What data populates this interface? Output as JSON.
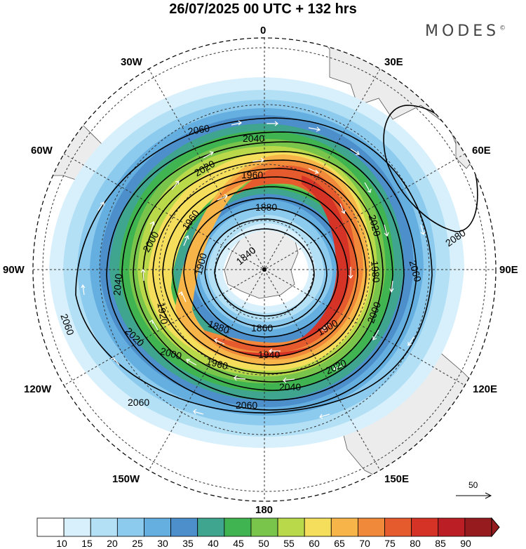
{
  "title": "26/07/2025  00 UTC  + 132 hrs",
  "brand": "MODES",
  "brand_mark": "©",
  "longitude_labels": {
    "lon_0": "0",
    "lon_30w": "30W",
    "lon_30e": "30E",
    "lon_60w": "60W",
    "lon_60e": "60E",
    "lon_90w": "90W",
    "lon_90e": "90E",
    "lon_120w": "120W",
    "lon_120e": "120E",
    "lon_150w": "150W",
    "lon_150e": "150E",
    "lon_180": "180"
  },
  "contour_labels": [
    "1840",
    "1860",
    "1880",
    "1900",
    "1920",
    "1940",
    "1960",
    "1980",
    "2000",
    "2020",
    "2040",
    "2060",
    "2080"
  ],
  "colorbar": {
    "ticks": [
      "10",
      "15",
      "20",
      "25",
      "30",
      "35",
      "40",
      "45",
      "50",
      "55",
      "60",
      "65",
      "70",
      "75",
      "80",
      "85",
      "90"
    ],
    "colors": [
      "#ffffff",
      "#d8f0fc",
      "#b3e0f5",
      "#8ccaee",
      "#64aee0",
      "#4c8fcb",
      "#3fa58e",
      "#40b451",
      "#79c44b",
      "#b9d94a",
      "#f4de5c",
      "#f6b449",
      "#f08a3a",
      "#e65b2e",
      "#d63327",
      "#bb1e24",
      "#951b1e"
    ]
  },
  "vector_reference": "50"
}
